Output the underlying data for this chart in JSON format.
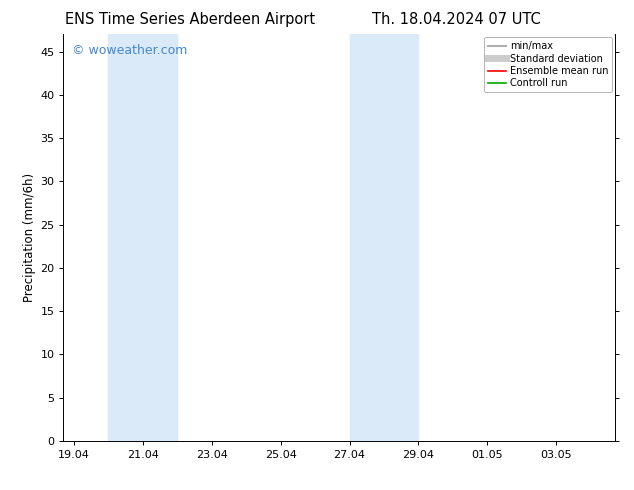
{
  "title_left": "ENS Time Series Aberdeen Airport",
  "title_right": "Th. 18.04.2024 07 UTC",
  "ylabel": "Precipitation (mm/6h)",
  "background_color": "#ffffff",
  "plot_bg_color": "#ffffff",
  "ymin": 0,
  "ymax": 47,
  "yticks": [
    0,
    5,
    10,
    15,
    20,
    25,
    30,
    35,
    40,
    45
  ],
  "xtick_labels": [
    "19.04",
    "21.04",
    "23.04",
    "25.04",
    "27.04",
    "29.04",
    "01.05",
    "03.05"
  ],
  "xtick_positions": [
    0,
    2,
    4,
    6,
    8,
    10,
    12,
    14
  ],
  "xmin": -0.3,
  "xmax": 15.7,
  "shade_regions": [
    {
      "xstart": 1.0,
      "xend": 3.0
    },
    {
      "xstart": 8.0,
      "xend": 10.0
    }
  ],
  "shade_color": "#daeaf8",
  "watermark_text": "© woweather.com",
  "watermark_color": "#4488cc",
  "legend_items": [
    {
      "label": "min/max",
      "color": "#b0b0b0",
      "lw": 1.5,
      "ls": "-"
    },
    {
      "label": "Standard deviation",
      "color": "#cccccc",
      "lw": 5,
      "ls": "-"
    },
    {
      "label": "Ensemble mean run",
      "color": "#ff0000",
      "lw": 1.2,
      "ls": "-"
    },
    {
      "label": "Controll run",
      "color": "#00aa00",
      "lw": 1.2,
      "ls": "-"
    }
  ],
  "title_fontsize": 10.5,
  "axis_label_fontsize": 8.5,
  "tick_fontsize": 8,
  "legend_fontsize": 7,
  "watermark_fontsize": 9
}
